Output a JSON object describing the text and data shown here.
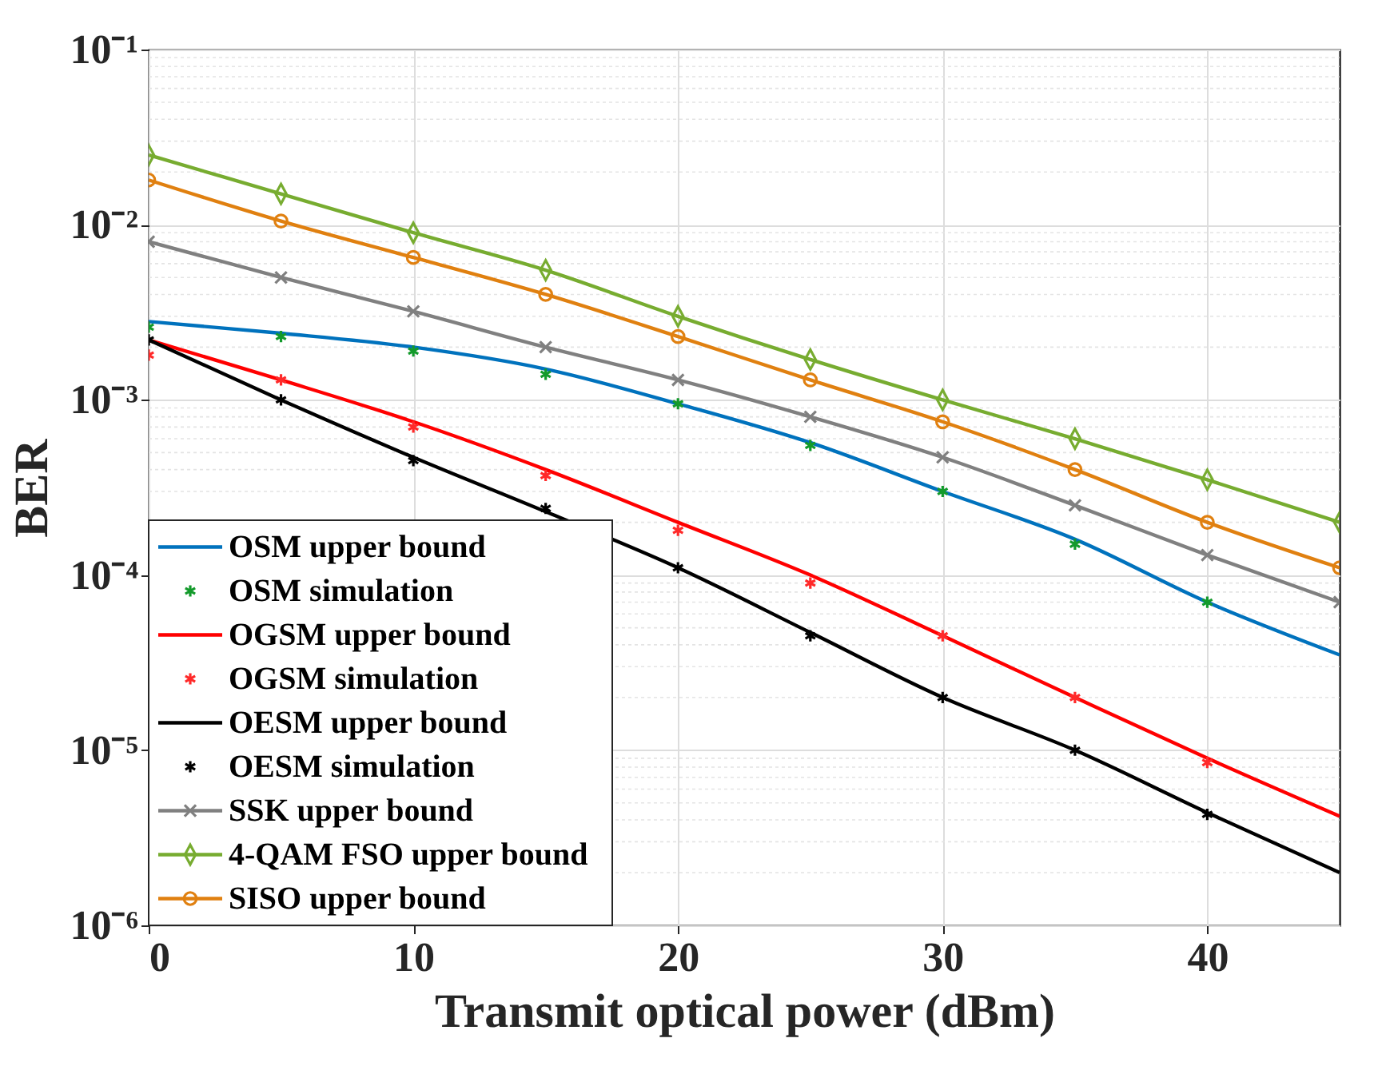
{
  "chart_data": {
    "type": "line",
    "xlabel": "Transmit optical power (dBm)",
    "ylabel": "BER",
    "x": [
      0,
      5,
      10,
      15,
      20,
      25,
      30,
      35,
      40,
      45
    ],
    "xlim": [
      0,
      45
    ],
    "xticks": [
      0,
      10,
      20,
      30,
      40
    ],
    "ylim": [
      1e-06,
      0.1
    ],
    "log": true,
    "yticks": [
      {
        "value": 1e-06,
        "label": "10⁻⁶"
      },
      {
        "value": 1e-05,
        "label": "10⁻⁵"
      },
      {
        "value": 0.0001,
        "label": "10⁻⁴"
      },
      {
        "value": 0.001,
        "label": "10⁻³"
      },
      {
        "value": 0.01,
        "label": "10⁻²"
      },
      {
        "value": 0.1,
        "label": "10⁻¹"
      }
    ],
    "grid": true,
    "legend": "bottom left",
    "line_style": "solid",
    "series": [
      {
        "name": "OSM upper bound",
        "marker": "none",
        "color": "#0072bd",
        "values": [
          0.0028,
          0.0024,
          0.002,
          0.0015,
          0.00095,
          0.00057,
          0.0003,
          0.00016,
          7e-05,
          3.5e-05
        ]
      },
      {
        "name": "OSM simulation",
        "type": "scatter",
        "marker": "cross",
        "color": "#139a2b",
        "x": [
          0,
          5,
          10,
          15,
          20,
          25,
          30,
          35,
          40
        ],
        "values": [
          0.0026,
          0.0023,
          0.0019,
          0.0014,
          0.00095,
          0.00055,
          0.0003,
          0.00015,
          7e-05
        ]
      },
      {
        "name": "OGSM upper bound",
        "marker": "none",
        "color": "#ff0000",
        "values": [
          0.0022,
          0.0013,
          0.00075,
          0.0004,
          0.0002,
          0.0001,
          4.5e-05,
          2e-05,
          9e-06,
          4.2e-06
        ]
      },
      {
        "name": "OGSM simulation",
        "type": "scatter",
        "marker": "cross",
        "color": "#ff2a2a",
        "x": [
          0,
          5,
          10,
          15,
          20,
          25,
          30,
          35,
          40
        ],
        "values": [
          0.0018,
          0.0013,
          0.0007,
          0.00037,
          0.00018,
          9e-05,
          4.5e-05,
          2e-05,
          8.5e-06
        ]
      },
      {
        "name": "OESM upper bound",
        "marker": "none",
        "color": "#000000",
        "values": [
          0.0022,
          0.001,
          0.00047,
          0.00023,
          0.00011,
          4.7e-05,
          2e-05,
          1e-05,
          4.4e-06,
          2e-06
        ]
      },
      {
        "name": "OESM simulation",
        "type": "scatter",
        "marker": "cross",
        "color": "#000000",
        "x": [
          0,
          5,
          10,
          15,
          20,
          25,
          30,
          35,
          40
        ],
        "values": [
          0.0022,
          0.001,
          0.00045,
          0.00024,
          0.00011,
          4.5e-05,
          2e-05,
          1e-05,
          4.3e-06
        ]
      },
      {
        "name": "SSK upper bound",
        "marker": "cross",
        "color": "#808080",
        "values": [
          0.008,
          0.005,
          0.0032,
          0.002,
          0.0013,
          0.0008,
          0.00047,
          0.00025,
          0.00013,
          7e-05
        ]
      },
      {
        "name": "4-QAM FSO upper bound",
        "marker": "diamond",
        "color": "#77ac30",
        "values": [
          0.025,
          0.015,
          0.009,
          0.0055,
          0.003,
          0.0017,
          0.001,
          0.0006,
          0.00035,
          0.0002
        ]
      },
      {
        "name": "SISO upper bound",
        "marker": "circle",
        "color": "#e08010",
        "values": [
          0.018,
          0.0105,
          0.0065,
          0.004,
          0.0023,
          0.0013,
          0.00075,
          0.0004,
          0.0002,
          0.00011
        ]
      }
    ]
  }
}
